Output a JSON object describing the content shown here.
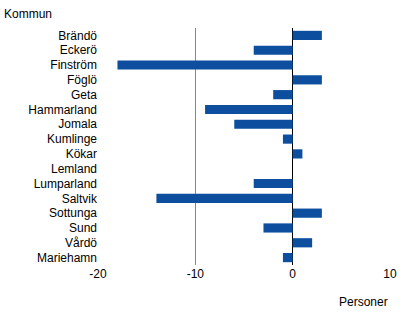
{
  "chart_data": {
    "type": "bar",
    "orientation": "horizontal",
    "ylabel": "Kommun",
    "xlabel": "Personer",
    "categories": [
      "Brändö",
      "Eckerö",
      "Finström",
      "Föglö",
      "Geta",
      "Hammarland",
      "Jomala",
      "Kumlinge",
      "Kökar",
      "Lemland",
      "Lumparland",
      "Saltvik",
      "Sottunga",
      "Sund",
      "Vårdö",
      "Mariehamn"
    ],
    "values": [
      3,
      -4,
      -18,
      3,
      -2,
      -9,
      -6,
      -1,
      1,
      0,
      -4,
      -14,
      3,
      -3,
      2,
      -1
    ],
    "color": "#0d4f9e",
    "xlim": [
      -20,
      10
    ],
    "xticks": [
      -20,
      -10,
      0,
      10
    ],
    "grid": true
  }
}
